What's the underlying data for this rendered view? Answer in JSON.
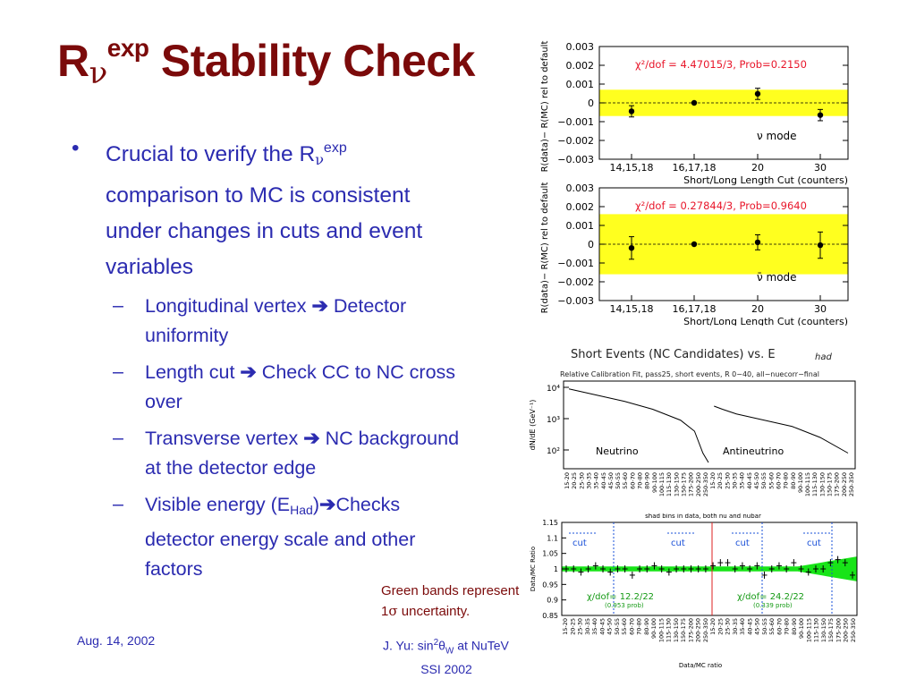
{
  "slide": {
    "title_main": "R",
    "title_sub": "ν",
    "title_sup": "exp",
    "title_rest": " Stability Check",
    "bullet_main": {
      "pre": "Crucial to verify the R",
      "sub": "ν",
      "sup": "exp",
      "post": " comparison to MC is consistent under changes in cuts and event variables"
    },
    "sub_bullets": [
      {
        "pre": "Longitudinal vertex ",
        "arrow": "➔",
        "post": " Detector uniformity"
      },
      {
        "pre": "Length cut ",
        "arrow": "➔",
        "post": " Check CC to NC cross over"
      },
      {
        "pre": "Transverse vertex ",
        "arrow": "➔",
        "post": " NC background at the detector edge"
      },
      {
        "pre": "Visible energy (E",
        "sub": "Had",
        "mid": ")",
        "arrow": "➔",
        "post": "Checks detector energy scale and other factors"
      }
    ],
    "caption": {
      "line1": "Green bands represent",
      "pre2": "1",
      "sigma": "σ",
      "post2": " uncertainty."
    },
    "footer": {
      "date": "Aug. 14, 2002",
      "author_pre": "J. Yu: sin",
      "author_sup": "2",
      "author_theta": "θ",
      "author_sub": "W",
      "author_post": " at NuTeV",
      "line2": "SSI 2002"
    }
  },
  "chart_data": [
    {
      "type": "scatter",
      "name": "nu-mode-stability",
      "categories": [
        "14,15,18",
        "16,17,18",
        "20",
        "30"
      ],
      "values": [
        -0.00045,
        0.0,
        0.00048,
        -0.00065
      ],
      "errors": [
        0.0003,
        3e-05,
        0.0003,
        0.0003
      ],
      "band": [
        -0.0007,
        0.0007
      ],
      "ylim": [
        -0.003,
        0.003
      ],
      "yticks": [
        "0.003",
        "0.002",
        "0.001",
        "0",
        "−0.001",
        "−0.002",
        "−0.003"
      ],
      "ylabel": "R(data)− R(MC) rel to default",
      "xlabel": "Short/Long Length Cut (counters)",
      "annotation": "χ²/dof = 4.47015/3, Prob=0.2150",
      "mode_label": "ν mode"
    },
    {
      "type": "scatter",
      "name": "nubar-mode-stability",
      "categories": [
        "14,15,18",
        "16,17,18",
        "20",
        "30"
      ],
      "values": [
        -0.0002,
        0.0,
        0.0001,
        -5e-05
      ],
      "errors": [
        0.0006,
        3e-05,
        0.0004,
        0.0007
      ],
      "band": [
        -0.0016,
        0.0016
      ],
      "ylim": [
        -0.003,
        0.003
      ],
      "yticks": [
        "0.003",
        "0.002",
        "0.001",
        "0",
        "−0.001",
        "−0.002",
        "−0.003"
      ],
      "ylabel": "R(data)− R(MC) rel to default",
      "xlabel": "Short/Long Length Cut (counters)",
      "annotation": "χ²/dof = 0.27844/3, Prob=0.9640",
      "mode_label": "ν̄ mode"
    },
    {
      "type": "line",
      "name": "short-events-spectrum",
      "title": "Short Events (NC Candidates) vs. E",
      "title_sub": "had",
      "subtitle": "Relative Calibration Fit, pass25, short events, R 0−40, all−nuecorr−final",
      "ylabel": "dN/dE (GeV⁻¹)",
      "yticks": [
        "10⁴",
        "10³",
        "10²"
      ],
      "series": [
        {
          "name": "Neutrino",
          "x": [
            0,
            0.1,
            0.2,
            0.3,
            0.4,
            0.45,
            0.48,
            0.5
          ],
          "y": [
            3.95,
            3.75,
            3.55,
            3.3,
            2.95,
            2.6,
            1.9,
            1.6
          ]
        },
        {
          "name": "Antineutrino",
          "x": [
            0.52,
            0.55,
            0.6,
            0.7,
            0.8,
            0.9,
            1.0
          ],
          "y": [
            3.4,
            3.3,
            3.15,
            2.95,
            2.75,
            2.4,
            1.9
          ]
        }
      ],
      "xtick_labels": [
        "15-20",
        "20-25",
        "25-30",
        "30-35",
        "35-40",
        "40-45",
        "45-50",
        "50-55",
        "55-60",
        "60-70",
        "70-80",
        "80-90",
        "90-100",
        "100-115",
        "115-130",
        "130-150",
        "150-175",
        "175-200",
        "200-250",
        "250-350",
        "15-20",
        "20-25",
        "25-30",
        "30-35",
        "35-40",
        "40-45",
        "45-50",
        "50-55",
        "55-60",
        "60-70",
        "70-80",
        "80-90",
        "90-100",
        "100-115",
        "115-130",
        "130-150",
        "150-175",
        "175-200",
        "200-250",
        "250-350"
      ]
    },
    {
      "type": "scatter",
      "name": "data-mc-ratio",
      "title": "shad bins in data, both nu and nubar",
      "ylabel": "Data/MC Ratio",
      "xlabel": "Data/MC ratio",
      "yticks": [
        "1.15",
        "1.1",
        "1.05",
        "1",
        "0.95",
        "0.9",
        "0.85"
      ],
      "ylim": [
        0.85,
        1.15
      ],
      "cut_labels": [
        "cut",
        "cut",
        "cut",
        "cut"
      ],
      "annotations": [
        {
          "text": "χ/dof= 12.2/22",
          "prob": "(0.953 prob)"
        },
        {
          "text": "χ/dof= 24.2/22",
          "prob": "(0.339 prob)"
        }
      ],
      "values": [
        1.0,
        1.0,
        0.99,
        1.0,
        1.01,
        1.0,
        0.99,
        1.0,
        1.0,
        0.98,
        1.0,
        1.0,
        1.01,
        1.0,
        0.99,
        1.0,
        1.0,
        1.0,
        1.0,
        1.0,
        1.01,
        1.02,
        1.02,
        1.0,
        1.01,
        1.0,
        1.01,
        0.98,
        1.0,
        1.01,
        1.0,
        1.02,
        1.0,
        0.99,
        1.0,
        1.0,
        1.02,
        1.03,
        1.02,
        0.98
      ],
      "xtick_labels": [
        "15-20",
        "20-25",
        "25-30",
        "30-35",
        "35-40",
        "40-45",
        "45-50",
        "50-55",
        "55-60",
        "60-70",
        "70-80",
        "80-90",
        "90-100",
        "100-115",
        "115-130",
        "130-150",
        "150-175",
        "175-200",
        "200-250",
        "250-350",
        "15-20",
        "20-25",
        "25-30",
        "30-35",
        "35-40",
        "40-45",
        "45-50",
        "50-55",
        "55-60",
        "60-70",
        "70-80",
        "80-90",
        "90-100",
        "100-115",
        "115-130",
        "130-150",
        "150-175",
        "175-200",
        "200-250",
        "250-350"
      ]
    }
  ],
  "colors": {
    "title": "#7b0a0a",
    "text": "#2b2bb0",
    "band_yellow": "#ffff1f",
    "band_green": "#18e418",
    "annotation_red": "#e8162a",
    "cut_blue": "#1a50d8"
  }
}
